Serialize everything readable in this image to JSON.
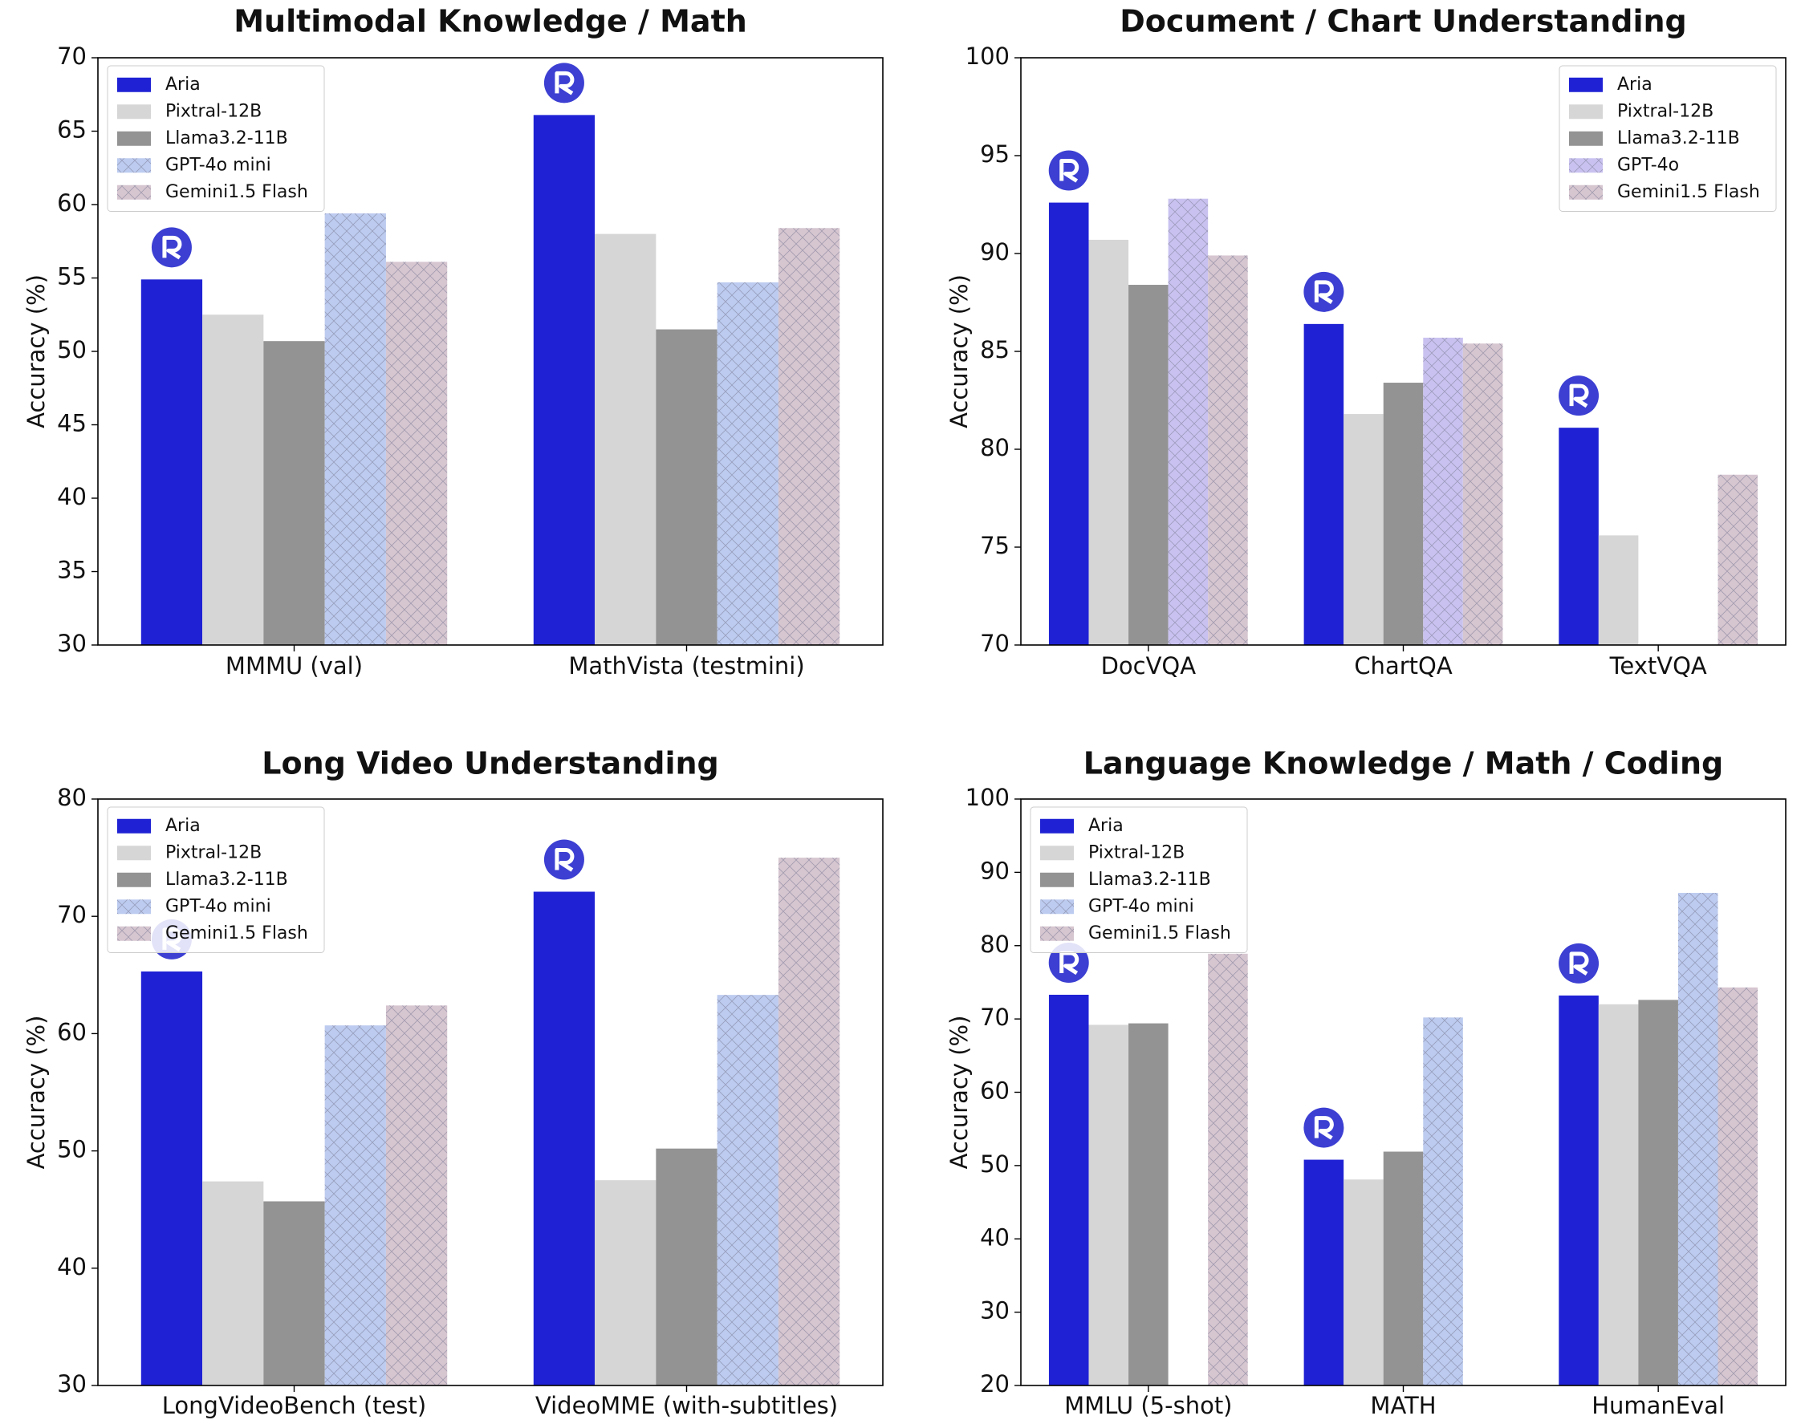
{
  "chart_data": [
    {
      "type": "bar",
      "title": "Multimodal Knowledge / Math",
      "y_label": "Accuracy (%)",
      "categories": [
        "MMMU (val)",
        "MathVista (testmini)"
      ],
      "ylim": [
        30,
        70
      ],
      "yticks": [
        30,
        35,
        40,
        45,
        50,
        55,
        60,
        65,
        70
      ],
      "legend": "upper left",
      "series": [
        {
          "name": "Aria",
          "color": "#1f22d4",
          "values": [
            54.9,
            66.1
          ]
        },
        {
          "name": "Pixtral-12B",
          "color": "#d6d6d6",
          "values": [
            52.5,
            58.0
          ]
        },
        {
          "name": "Llama3.2-11B",
          "color": "#939393",
          "values": [
            50.7,
            51.5
          ]
        },
        {
          "name": "GPT-4o mini",
          "color": "#bccbef",
          "hatch": true,
          "values": [
            59.4,
            54.7
          ]
        },
        {
          "name": "Gemini1.5 Flash",
          "color": "#d6c6d0",
          "hatch": true,
          "values": [
            56.1,
            58.4
          ]
        }
      ]
    },
    {
      "type": "bar",
      "title": "Document / Chart Understanding",
      "y_label": "Accuracy (%)",
      "categories": [
        "DocVQA",
        "ChartQA",
        "TextVQA"
      ],
      "ylim": [
        70,
        100
      ],
      "yticks": [
        70,
        75,
        80,
        85,
        90,
        95,
        100
      ],
      "legend": "upper right",
      "series": [
        {
          "name": "Aria",
          "color": "#1f22d4",
          "values": [
            92.6,
            86.4,
            81.1
          ]
        },
        {
          "name": "Pixtral-12B",
          "color": "#d6d6d6",
          "values": [
            90.7,
            81.8,
            75.6
          ]
        },
        {
          "name": "Llama3.2-11B",
          "color": "#939393",
          "values": [
            88.4,
            83.4,
            null
          ]
        },
        {
          "name": "GPT-4o",
          "color": "#c9c2f0",
          "hatch": true,
          "values": [
            92.8,
            85.7,
            null
          ]
        },
        {
          "name": "Gemini1.5 Flash",
          "color": "#d6c6d0",
          "hatch": true,
          "values": [
            89.9,
            85.4,
            78.7
          ]
        }
      ]
    },
    {
      "type": "bar",
      "title": "Long Video Understanding",
      "y_label": "Accuracy (%)",
      "categories": [
        "LongVideoBench (test)",
        "VideoMME (with-subtitles)"
      ],
      "ylim": [
        30,
        80
      ],
      "yticks": [
        30,
        40,
        50,
        60,
        70,
        80
      ],
      "legend": "upper left",
      "series": [
        {
          "name": "Aria",
          "color": "#1f22d4",
          "values": [
            65.3,
            72.1
          ]
        },
        {
          "name": "Pixtral-12B",
          "color": "#d6d6d6",
          "values": [
            47.4,
            47.5
          ]
        },
        {
          "name": "Llama3.2-11B",
          "color": "#939393",
          "values": [
            45.7,
            50.2
          ]
        },
        {
          "name": "GPT-4o mini",
          "color": "#bccbef",
          "hatch": true,
          "values": [
            60.7,
            63.3
          ]
        },
        {
          "name": "Gemini1.5 Flash",
          "color": "#d6c6d0",
          "hatch": true,
          "values": [
            62.4,
            75.0
          ]
        }
      ]
    },
    {
      "type": "bar",
      "title": "Language Knowledge / Math / Coding",
      "y_label": "Accuracy (%)",
      "categories": [
        "MMLU (5-shot)",
        "MATH",
        "HumanEval"
      ],
      "ylim": [
        20,
        100
      ],
      "yticks": [
        20,
        30,
        40,
        50,
        60,
        70,
        80,
        90,
        100
      ],
      "legend": "upper left",
      "series": [
        {
          "name": "Aria",
          "color": "#1f22d4",
          "values": [
            73.3,
            50.8,
            73.2
          ]
        },
        {
          "name": "Pixtral-12B",
          "color": "#d6d6d6",
          "values": [
            69.2,
            48.1,
            72.0
          ]
        },
        {
          "name": "Llama3.2-11B",
          "color": "#939393",
          "values": [
            69.4,
            51.9,
            72.6
          ]
        },
        {
          "name": "GPT-4o mini",
          "color": "#bccbef",
          "hatch": true,
          "values": [
            null,
            70.2,
            87.2
          ]
        },
        {
          "name": "Gemini1.5 Flash",
          "color": "#d6c6d0",
          "hatch": true,
          "values": [
            78.9,
            null,
            74.3
          ]
        }
      ]
    }
  ]
}
